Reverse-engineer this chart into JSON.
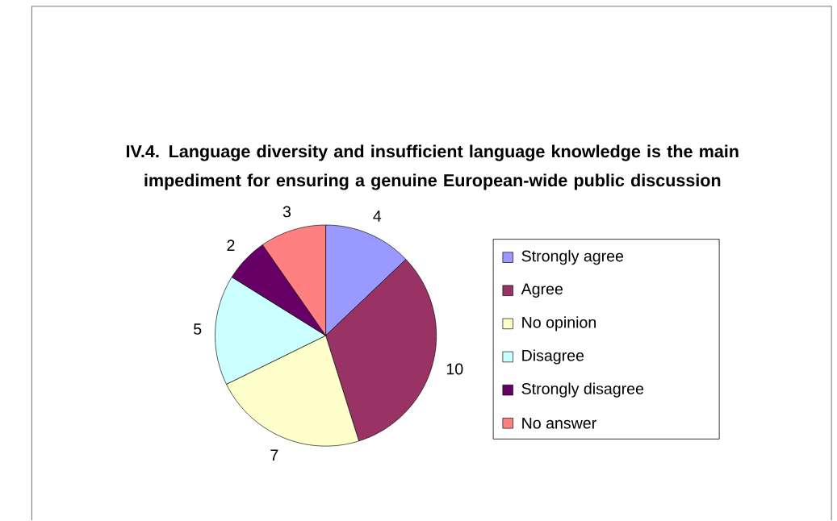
{
  "chart_data": {
    "type": "pie",
    "title": "IV.4. Language diversity and insufficient language knowledge is the main impediment for ensuring a genuine European-wide public discussion",
    "categories": [
      "Strongly agree",
      "Agree",
      "No opinion",
      "Disagree",
      "Strongly disagree",
      "No answer"
    ],
    "values": [
      4,
      10,
      7,
      5,
      2,
      3
    ],
    "colors": [
      "#9999ff",
      "#993366",
      "#ffffcc",
      "#ccffff",
      "#660066",
      "#ff8080"
    ],
    "data_labels": true,
    "legend": "right"
  }
}
